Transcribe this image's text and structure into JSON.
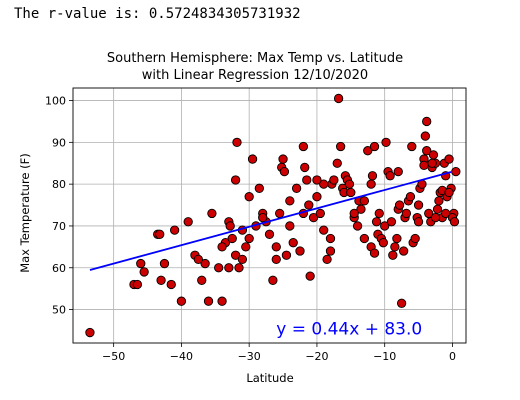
{
  "output": {
    "rvalue_text": "The r-value is: 0.5724834305731932"
  },
  "chart_data": {
    "type": "scatter",
    "title_line1": "Southern Hemisphere: Max Temp vs. Latitude",
    "title_line2": "with Linear Regression 12/10/2020",
    "xlabel": "Latitude",
    "ylabel": "Max Temperature (F)",
    "xlim": [
      -56,
      2
    ],
    "ylim": [
      42,
      103
    ],
    "xticks": [
      -50,
      -40,
      -30,
      -20,
      -10,
      0
    ],
    "xtick_labels": [
      "−50",
      "−40",
      "−30",
      "−20",
      "−10",
      "0"
    ],
    "yticks": [
      50,
      60,
      70,
      80,
      90,
      100
    ],
    "ytick_labels": [
      "50",
      "60",
      "70",
      "80",
      "90",
      "100"
    ],
    "grid": true,
    "marker_color": "#cc0000",
    "marker_edge_color": "#000000",
    "line_color": "#0000ff",
    "regression": {
      "slope": 0.44,
      "intercept": 83.0,
      "x_range": [
        -53.5,
        -0.2
      ],
      "equation_label": "y = 0.44x + 83.0",
      "label_color": "#0000ff",
      "label_anchor_data": [
        -26,
        44
      ]
    },
    "points": [
      {
        "x": -53.5,
        "y": 44.5
      },
      {
        "x": -47,
        "y": 56
      },
      {
        "x": -46.5,
        "y": 56
      },
      {
        "x": -46,
        "y": 61
      },
      {
        "x": -45.5,
        "y": 59
      },
      {
        "x": -43.5,
        "y": 68
      },
      {
        "x": -43.2,
        "y": 68
      },
      {
        "x": -43,
        "y": 57
      },
      {
        "x": -42.5,
        "y": 61
      },
      {
        "x": -41.5,
        "y": 56
      },
      {
        "x": -41,
        "y": 69
      },
      {
        "x": -40,
        "y": 52
      },
      {
        "x": -39,
        "y": 71
      },
      {
        "x": -38,
        "y": 63
      },
      {
        "x": -37,
        "y": 57
      },
      {
        "x": -36.5,
        "y": 61
      },
      {
        "x": -36,
        "y": 52
      },
      {
        "x": -35.5,
        "y": 73
      },
      {
        "x": -34.5,
        "y": 60
      },
      {
        "x": -34,
        "y": 52
      },
      {
        "x": -33.5,
        "y": 66
      },
      {
        "x": -33,
        "y": 71
      },
      {
        "x": -32.8,
        "y": 70
      },
      {
        "x": -32.5,
        "y": 67
      },
      {
        "x": -32,
        "y": 63
      },
      {
        "x": -32,
        "y": 81
      },
      {
        "x": -31.8,
        "y": 90
      },
      {
        "x": -31.5,
        "y": 60
      },
      {
        "x": -31,
        "y": 69
      },
      {
        "x": -30.5,
        "y": 65
      },
      {
        "x": -30,
        "y": 77
      },
      {
        "x": -29.5,
        "y": 86
      },
      {
        "x": -29,
        "y": 70
      },
      {
        "x": -28.5,
        "y": 79
      },
      {
        "x": -28,
        "y": 73
      },
      {
        "x": -27.5,
        "y": 71
      },
      {
        "x": -27,
        "y": 68
      },
      {
        "x": -26.5,
        "y": 57
      },
      {
        "x": -26,
        "y": 65
      },
      {
        "x": -25.5,
        "y": 73
      },
      {
        "x": -25.2,
        "y": 84
      },
      {
        "x": -25,
        "y": 86
      },
      {
        "x": -24.8,
        "y": 83
      },
      {
        "x": -24.5,
        "y": 63
      },
      {
        "x": -24,
        "y": 70
      },
      {
        "x": -23.5,
        "y": 66
      },
      {
        "x": -23,
        "y": 79
      },
      {
        "x": -22.5,
        "y": 64
      },
      {
        "x": -22,
        "y": 89
      },
      {
        "x": -21.8,
        "y": 84
      },
      {
        "x": -21.5,
        "y": 81
      },
      {
        "x": -21.2,
        "y": 75
      },
      {
        "x": -21,
        "y": 58
      },
      {
        "x": -20.5,
        "y": 72
      },
      {
        "x": -20,
        "y": 77
      },
      {
        "x": -19.5,
        "y": 73
      },
      {
        "x": -19,
        "y": 69
      },
      {
        "x": -18.5,
        "y": 62
      },
      {
        "x": -18,
        "y": 67
      },
      {
        "x": -17.8,
        "y": 80
      },
      {
        "x": -17.5,
        "y": 81
      },
      {
        "x": -17,
        "y": 85
      },
      {
        "x": -16.8,
        "y": 100.5
      },
      {
        "x": -16.5,
        "y": 89
      },
      {
        "x": -16.2,
        "y": 79
      },
      {
        "x": -16,
        "y": 78
      },
      {
        "x": -15.8,
        "y": 82
      },
      {
        "x": -15.5,
        "y": 81
      },
      {
        "x": -15.2,
        "y": 80
      },
      {
        "x": -15,
        "y": 78
      },
      {
        "x": -14.5,
        "y": 72
      },
      {
        "x": -14,
        "y": 70
      },
      {
        "x": -13.8,
        "y": 76
      },
      {
        "x": -13.5,
        "y": 74
      },
      {
        "x": -13,
        "y": 76
      },
      {
        "x": -12.5,
        "y": 88
      },
      {
        "x": -12,
        "y": 80
      },
      {
        "x": -11.8,
        "y": 82
      },
      {
        "x": -11.5,
        "y": 89
      },
      {
        "x": -11.2,
        "y": 71
      },
      {
        "x": -11,
        "y": 68
      },
      {
        "x": -10.8,
        "y": 73
      },
      {
        "x": -10.5,
        "y": 67
      },
      {
        "x": -10.2,
        "y": 66
      },
      {
        "x": -10,
        "y": 70
      },
      {
        "x": -9.8,
        "y": 90
      },
      {
        "x": -9.5,
        "y": 83
      },
      {
        "x": -9.2,
        "y": 82
      },
      {
        "x": -9,
        "y": 71
      },
      {
        "x": -8.8,
        "y": 63
      },
      {
        "x": -8.5,
        "y": 65
      },
      {
        "x": -8.2,
        "y": 67
      },
      {
        "x": -8,
        "y": 83
      },
      {
        "x": -7.5,
        "y": 51.5
      },
      {
        "x": -7.2,
        "y": 64
      },
      {
        "x": -7,
        "y": 72
      },
      {
        "x": -6.5,
        "y": 76
      },
      {
        "x": -6,
        "y": 89
      },
      {
        "x": -5.8,
        "y": 66
      },
      {
        "x": -5.5,
        "y": 67
      },
      {
        "x": -5.2,
        "y": 72
      },
      {
        "x": -5,
        "y": 75
      },
      {
        "x": -4.8,
        "y": 79
      },
      {
        "x": -4.5,
        "y": 80
      },
      {
        "x": -4.2,
        "y": 86
      },
      {
        "x": -4,
        "y": 91.5
      },
      {
        "x": -3.8,
        "y": 88
      },
      {
        "x": -3.5,
        "y": 73
      },
      {
        "x": -3.2,
        "y": 71
      },
      {
        "x": -3,
        "y": 84
      },
      {
        "x": -2.8,
        "y": 87
      },
      {
        "x": -2.5,
        "y": 85
      },
      {
        "x": -2.2,
        "y": 74
      },
      {
        "x": -2,
        "y": 76
      },
      {
        "x": -1.8,
        "y": 78
      },
      {
        "x": -1.5,
        "y": 72
      },
      {
        "x": -1.2,
        "y": 85
      },
      {
        "x": -1,
        "y": 82
      },
      {
        "x": -0.8,
        "y": 77
      },
      {
        "x": -0.5,
        "y": 86
      },
      {
        "x": -0.2,
        "y": 79
      },
      {
        "x": 0.2,
        "y": 73
      },
      {
        "x": 0.5,
        "y": 83
      }
    ],
    "points_extra": [
      {
        "x": -26,
        "y": 62
      },
      {
        "x": -8,
        "y": 74
      },
      {
        "x": -7.8,
        "y": 75
      },
      {
        "x": -6.8,
        "y": 73
      },
      {
        "x": -6.2,
        "y": 77
      },
      {
        "x": -5,
        "y": 71
      },
      {
        "x": -4.2,
        "y": 84.5
      },
      {
        "x": -3.8,
        "y": 95
      },
      {
        "x": -3,
        "y": 85
      },
      {
        "x": -2.5,
        "y": 72
      },
      {
        "x": -1.5,
        "y": 78.5
      },
      {
        "x": -1,
        "y": 73
      },
      {
        "x": -0.5,
        "y": 78
      },
      {
        "x": 0,
        "y": 72
      },
      {
        "x": 0.3,
        "y": 71
      },
      {
        "x": -12,
        "y": 65
      },
      {
        "x": -11.5,
        "y": 63.5
      },
      {
        "x": -13,
        "y": 67
      },
      {
        "x": -14.5,
        "y": 73
      },
      {
        "x": -18,
        "y": 64
      },
      {
        "x": -19,
        "y": 80
      },
      {
        "x": -20,
        "y": 81
      },
      {
        "x": -22,
        "y": 73
      },
      {
        "x": -24,
        "y": 76
      },
      {
        "x": -28,
        "y": 72
      },
      {
        "x": -30,
        "y": 67
      },
      {
        "x": -34,
        "y": 65
      },
      {
        "x": -37.5,
        "y": 62
      },
      {
        "x": -31,
        "y": 62
      },
      {
        "x": -33,
        "y": 60
      }
    ]
  }
}
